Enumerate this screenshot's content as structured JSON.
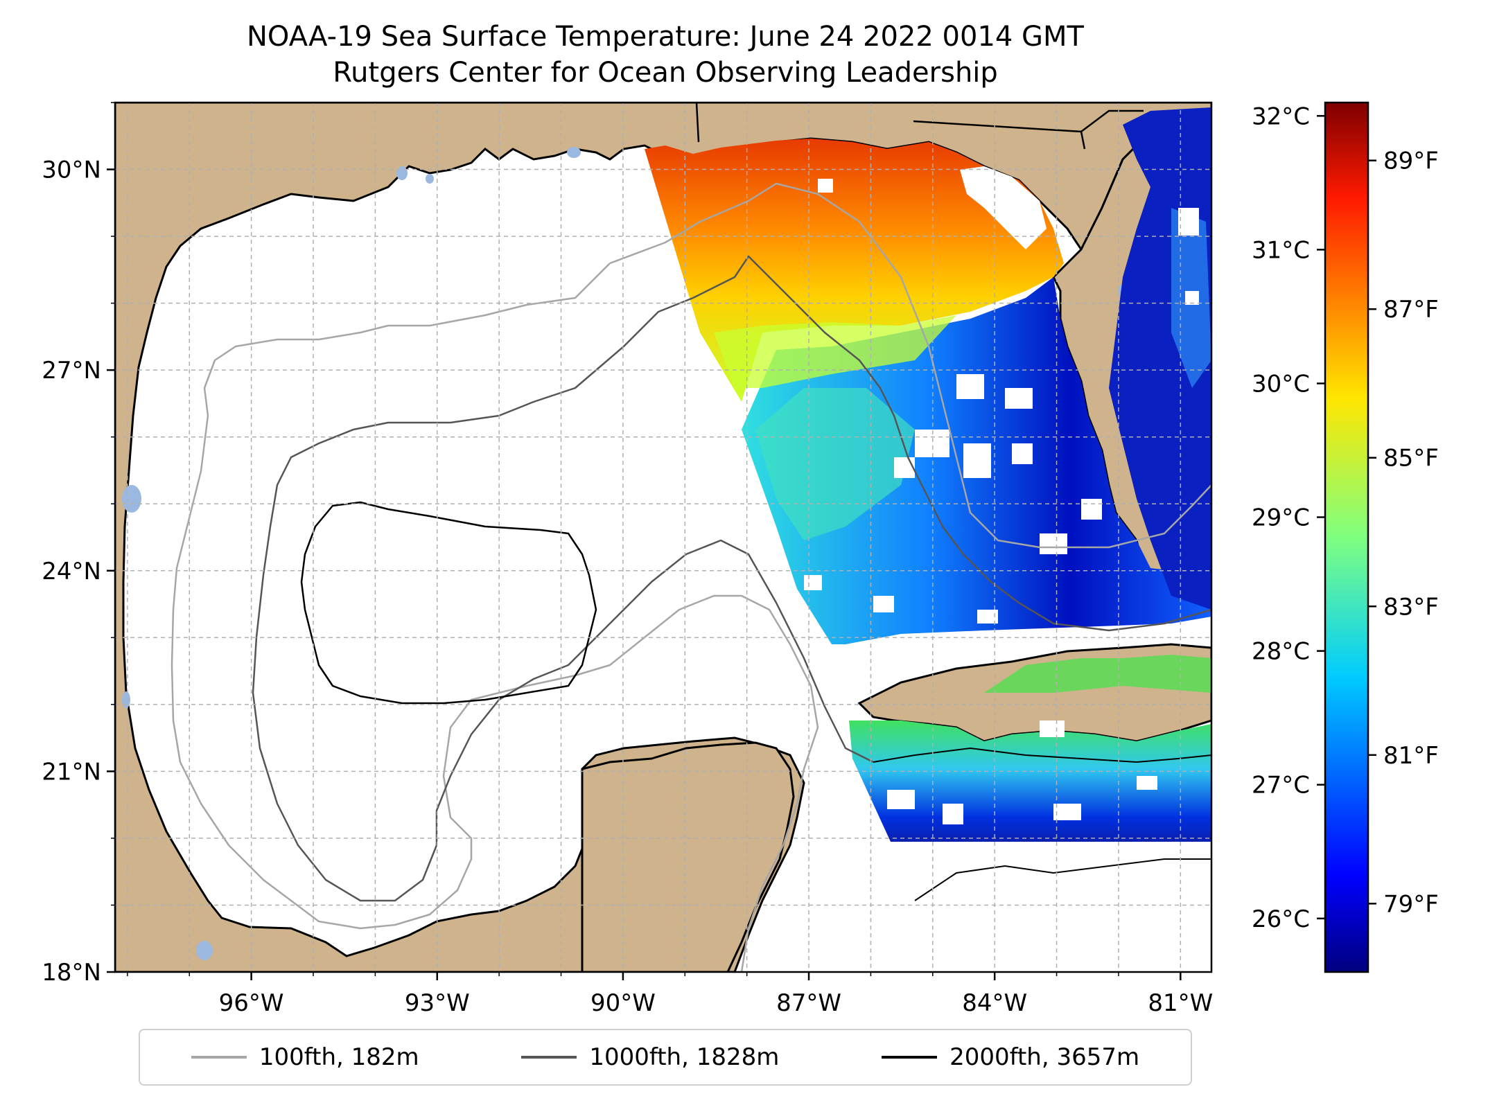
{
  "title": {
    "line1": "NOAA-19 Sea Surface Temperature: June 24 2022 0014 GMT",
    "line2": "Rutgers Center for Ocean Observing Leadership"
  },
  "map": {
    "lat_labels": [
      "30°N",
      "27°N",
      "24°N",
      "21°N",
      "18°N"
    ],
    "lat_values": [
      30,
      27,
      24,
      21,
      18
    ],
    "lon_labels": [
      "96°W",
      "93°W",
      "90°W",
      "87°W",
      "84°W",
      "81°W"
    ],
    "lon_values": [
      -96,
      -93,
      -90,
      -87,
      -84,
      -81
    ],
    "lat_range": [
      18,
      31
    ],
    "lon_range": [
      -98.2,
      -80.5
    ],
    "colors": {
      "land": "#cfb38c",
      "ocean_nodata": "#ffffff",
      "lakes": "#9bb8e0",
      "grid": "#b0b0b0"
    }
  },
  "colorbar": {
    "celsius_labels": [
      "32°C",
      "31°C",
      "30°C",
      "29°C",
      "28°C",
      "27°C",
      "26°C"
    ],
    "celsius_values": [
      32,
      31,
      30,
      29,
      28,
      27,
      26
    ],
    "fahrenheit_labels": [
      "89°F",
      "87°F",
      "85°F",
      "83°F",
      "81°F",
      "79°F"
    ],
    "fahrenheit_values": [
      89,
      87,
      85,
      83,
      81,
      79
    ],
    "range_c": [
      25.6,
      32.1
    ],
    "colormap": "jet"
  },
  "legend": {
    "items": [
      {
        "label": "100fth, 182m",
        "color": "#a6a6a6"
      },
      {
        "label": "1000fth, 1828m",
        "color": "#555555"
      },
      {
        "label": "2000fth, 3657m",
        "color": "#000000"
      }
    ]
  }
}
